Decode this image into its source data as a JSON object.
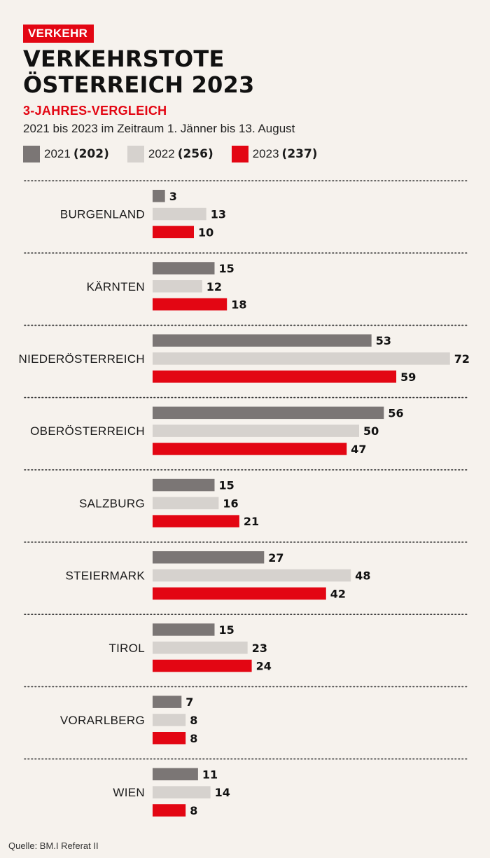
{
  "kicker": "VERKEHR",
  "title_line1": "VERKEHRSTOTE",
  "title_line2": "ÖSTERREICH 2023",
  "subtitle": "3-JAHRES-VERGLEICH",
  "description": "2021 bis 2023 im Zeitraum 1. Jänner bis 13. August",
  "legend": [
    {
      "year": "2021",
      "total": "(202)",
      "color": "#7b7675"
    },
    {
      "year": "2022",
      "total": "(256)",
      "color": "#d6d2ce"
    },
    {
      "year": "2023",
      "total": "(237)",
      "color": "#e30613"
    }
  ],
  "source": "Quelle: BM.I Referat II",
  "chart_data": {
    "type": "bar",
    "orientation": "horizontal",
    "categories": [
      "BURGENLAND",
      "KÄRNTEN",
      "NIEDERÖSTERREICH",
      "OBERÖSTERREICH",
      "SALZBURG",
      "STEIERMARK",
      "TIROL",
      "VORARLBERG",
      "WIEN"
    ],
    "series": [
      {
        "name": "2021",
        "color": "#7b7675",
        "values": [
          3,
          15,
          53,
          56,
          15,
          27,
          15,
          7,
          11
        ]
      },
      {
        "name": "2022",
        "color": "#d6d2ce",
        "values": [
          13,
          12,
          72,
          50,
          16,
          48,
          23,
          8,
          14
        ]
      },
      {
        "name": "2023",
        "color": "#e30613",
        "values": [
          10,
          18,
          59,
          47,
          21,
          42,
          24,
          8,
          8
        ]
      }
    ],
    "data_labels": true,
    "grid": false
  }
}
